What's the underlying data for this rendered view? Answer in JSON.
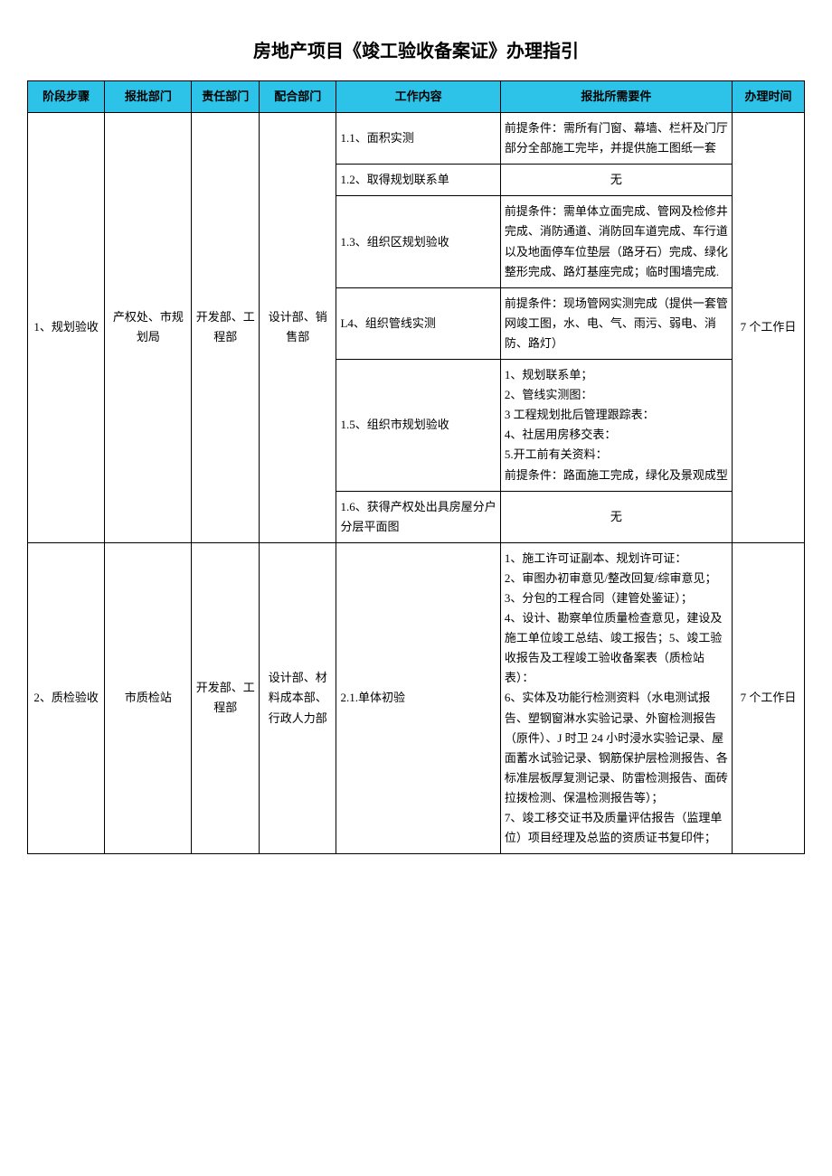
{
  "title": "房地产项目《竣工验收备案证》办理指引",
  "headers": {
    "stage": "阶段步骤",
    "dept_approve": "报批部门",
    "dept_responsible": "责任部门",
    "dept_cooperate": "配合部门",
    "work_content": "工作内容",
    "requirements": "报批所需要件",
    "duration": "办理时间"
  },
  "rows": [
    {
      "stage": "1、规划验收",
      "dept_approve": "产权处、市规划局",
      "dept_responsible": "开发部、工程部",
      "dept_cooperate": "设计部、销售部",
      "duration": "7 个工作日",
      "items": [
        {
          "work": "1.1、面积实测",
          "req": "前提条件：需所有门窗、幕墙、栏杆及门厅部分全部施工完毕，并提供施工图纸一套"
        },
        {
          "work": "1.2、取得规划联系单",
          "req": "无",
          "req_center": true
        },
        {
          "work": "1.3、组织区规划验收",
          "req": "前提条件：需单体立面完成、管网及检修井完成、消防通道、消防回车道完成、车行道以及地面停车位垫层（路牙石）完成、绿化整形完成、路灯基座完成；临时围墙完成."
        },
        {
          "work": "L4、组织管线实测",
          "req": "前提条件：现场管网实测完成（提供一套管网竣工图，水、电、气、雨污、弱电、消防、路灯）"
        },
        {
          "work": "1.5、组织市规划验收",
          "req": "1、规划联系单；\n2、管线实测图：\n3 工程规划批后管理跟踪表：\n4、社居用房移交表：\n5.开工前有关资料：\n前提条件：路面施工完成，绿化及景观成型"
        },
        {
          "work": "1.6、获得产权处出具房屋分户分层平面图",
          "req": "无",
          "req_center": true
        }
      ]
    },
    {
      "stage": "2、质检验收",
      "dept_approve": "市质检站",
      "dept_responsible": "开发部、工程部",
      "dept_cooperate": "设计部、材料成本部、行政人力部",
      "duration": "7 个工作日",
      "items": [
        {
          "work": "2.1.单体初验",
          "req": "1、施工许可证副本、规划许可证：\n2、审图办初审意见/整改回复/综审意见；\n3、分包的工程合同（建管处鉴证）；\n4、设计、勘察单位质量检查意见，建设及施工单位竣工总结、竣工报告；5、竣工验收报告及工程竣工验收备案表（质检站表）：\n6、实体及功能行检测资料（水电测试报告、塑钢窗淋水实验记录、外窗检测报告（原件）、J 时卫 24 小时浸水实验记录、屋面蓄水试验记录、钢筋保护层检测报告、各标准层板厚复测记录、防雷检测报告、面砖拉拨检测、保温检测报告等）；\n7、竣工移交证书及质量评估报告（监理单位）项目经理及总监的资质证书复印件；"
        }
      ]
    }
  ]
}
